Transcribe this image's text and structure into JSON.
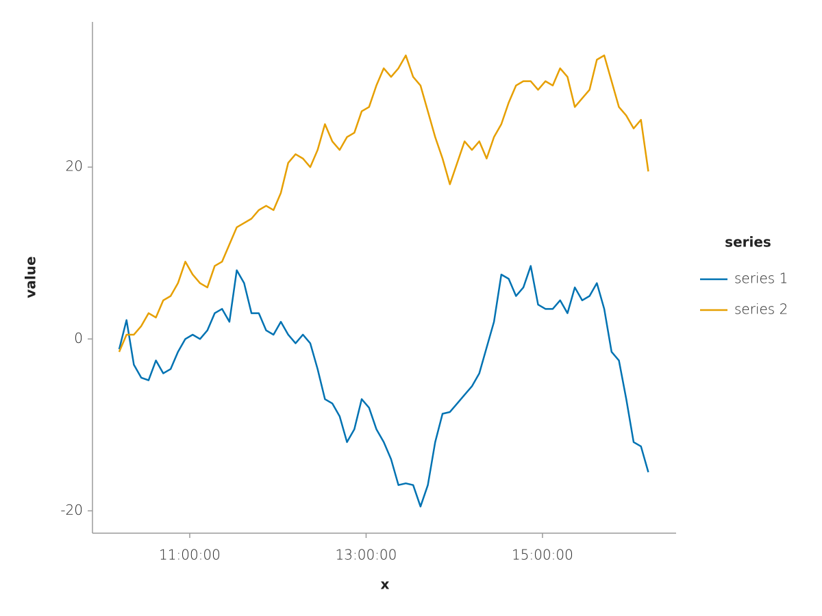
{
  "chart_data": {
    "type": "line",
    "x_label": "x",
    "y_label": "value",
    "x": [
      "10:12:00",
      "10:17:00",
      "10:22:00",
      "10:27:00",
      "10:32:00",
      "10:37:00",
      "10:42:00",
      "10:47:00",
      "10:52:00",
      "10:57:00",
      "11:02:00",
      "11:07:00",
      "11:12:00",
      "11:17:00",
      "11:22:00",
      "11:27:00",
      "11:32:00",
      "11:37:00",
      "11:42:00",
      "11:47:00",
      "11:52:00",
      "11:57:00",
      "12:02:00",
      "12:07:00",
      "12:12:00",
      "12:17:00",
      "12:22:00",
      "12:27:00",
      "12:32:00",
      "12:37:00",
      "12:42:00",
      "12:47:00",
      "12:52:00",
      "12:57:00",
      "13:02:00",
      "13:07:00",
      "13:12:00",
      "13:17:00",
      "13:22:00",
      "13:27:00",
      "13:32:00",
      "13:37:00",
      "13:42:00",
      "13:47:00",
      "13:52:00",
      "13:57:00",
      "14:02:00",
      "14:07:00",
      "14:12:00",
      "14:17:00",
      "14:22:00",
      "14:27:00",
      "14:32:00",
      "14:37:00",
      "14:42:00",
      "14:47:00",
      "14:52:00",
      "14:57:00",
      "15:02:00",
      "15:07:00",
      "15:12:00",
      "15:17:00",
      "15:22:00",
      "15:27:00",
      "15:32:00",
      "15:37:00",
      "15:42:00",
      "15:47:00",
      "15:52:00",
      "15:57:00",
      "16:02:00",
      "16:07:00",
      "16:12:00"
    ],
    "series": [
      {
        "name": "series 1",
        "color": "#0072b2",
        "values": [
          -1.2,
          2.2,
          -3,
          -4.5,
          -4.8,
          -2.5,
          -4,
          -3.5,
          -1.5,
          0,
          0.5,
          0,
          1,
          3,
          3.5,
          2,
          8,
          6.5,
          3,
          3,
          1,
          0.5,
          2,
          0.5,
          -0.5,
          0.5,
          -0.5,
          -3.5,
          -7,
          -7.5,
          -9,
          -12,
          -10.5,
          -7,
          -8,
          -10.5,
          -12,
          -14,
          -17,
          -16.8,
          -17,
          -19.5,
          -17,
          -12,
          -8.7,
          -8.5,
          -7.5,
          -6.5,
          -5.5,
          -4,
          -1,
          2,
          7.5,
          7,
          5,
          6,
          8.5,
          4,
          3.5,
          3.5,
          4.5,
          3,
          6,
          4.5,
          5,
          6.5,
          3.5,
          -1.5,
          -2.5,
          -7,
          -12,
          -12.5,
          -15.5
        ]
      },
      {
        "name": "series 2",
        "color": "#e69f00",
        "values": [
          -1.5,
          0.5,
          0.5,
          1.5,
          3,
          2.5,
          4.5,
          5,
          6.5,
          9,
          7.5,
          6.5,
          6,
          8.5,
          9,
          11,
          13,
          13.5,
          14,
          15,
          15.5,
          15,
          17,
          20.5,
          21.5,
          21,
          20,
          22,
          25,
          23,
          22,
          23.5,
          24,
          26.5,
          27,
          29.5,
          31.5,
          30.5,
          31.5,
          33,
          30.5,
          29.5,
          26.5,
          23.5,
          21,
          18,
          20.5,
          23,
          22,
          23,
          21,
          23.5,
          25,
          27.5,
          29.5,
          30,
          30,
          29,
          30,
          29.5,
          31.5,
          30.5,
          27,
          28,
          29,
          32.5,
          33,
          30,
          27,
          26,
          24.5,
          25.5,
          19.5
        ]
      }
    ],
    "xlim": [
      "09:53:50",
      "16:30:54"
    ],
    "xticks": [
      "11:00:00",
      "13:00:00",
      "15:00:00"
    ],
    "ylim": [
      -22.6,
      36.9
    ],
    "yticks": [
      -20,
      0,
      20
    ],
    "legend_title": "series",
    "legend": "right"
  }
}
